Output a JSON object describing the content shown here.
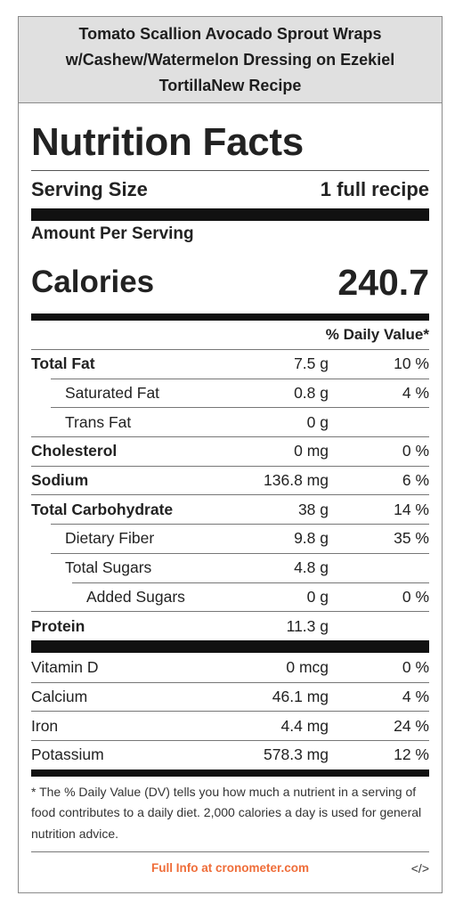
{
  "title": "Tomato Scallion Avocado Sprout Wraps w/Cashew/Watermelon Dressing on Ezekiel TortillaNew Recipe",
  "heading": "Nutrition Facts",
  "serving": {
    "label": "Serving Size",
    "value": "1 full recipe"
  },
  "amount_per_serving": "Amount Per Serving",
  "calories": {
    "label": "Calories",
    "value": "240.7"
  },
  "daily_value_header": "% Daily Value*",
  "nutrients": [
    {
      "name": "Total Fat",
      "amount": "7.5 g",
      "dv": "10 %"
    },
    {
      "name": "Saturated Fat",
      "amount": "0.8 g",
      "dv": "4 %"
    },
    {
      "name": "Trans Fat",
      "amount": "0 g",
      "dv": ""
    },
    {
      "name": "Cholesterol",
      "amount": "0 mg",
      "dv": "0 %"
    },
    {
      "name": "Sodium",
      "amount": "136.8 mg",
      "dv": "6 %"
    },
    {
      "name": "Total Carbohydrate",
      "amount": "38 g",
      "dv": "14 %"
    },
    {
      "name": "Dietary Fiber",
      "amount": "9.8 g",
      "dv": "35 %"
    },
    {
      "name": "Total Sugars",
      "amount": "4.8 g",
      "dv": ""
    },
    {
      "name": "Added Sugars",
      "amount": "0 g",
      "dv": "0 %"
    },
    {
      "name": "Protein",
      "amount": "11.3 g",
      "dv": ""
    }
  ],
  "vitamins": [
    {
      "name": "Vitamin D",
      "amount": "0 mcg",
      "dv": "0 %"
    },
    {
      "name": "Calcium",
      "amount": "46.1 mg",
      "dv": "4 %"
    },
    {
      "name": "Iron",
      "amount": "4.4 mg",
      "dv": "24 %"
    },
    {
      "name": "Potassium",
      "amount": "578.3 mg",
      "dv": "12 %"
    }
  ],
  "footnote": "* The % Daily Value (DV) tells you how much a nutrient in a serving of food contributes to a daily diet. 2,000 calories a day is used for general nutrition advice.",
  "footer": {
    "link_text": "Full Info at cronometer.com",
    "embed_icon": "</>"
  },
  "colors": {
    "link": "#ef6d39",
    "title_bg": "#e0e0e0"
  }
}
